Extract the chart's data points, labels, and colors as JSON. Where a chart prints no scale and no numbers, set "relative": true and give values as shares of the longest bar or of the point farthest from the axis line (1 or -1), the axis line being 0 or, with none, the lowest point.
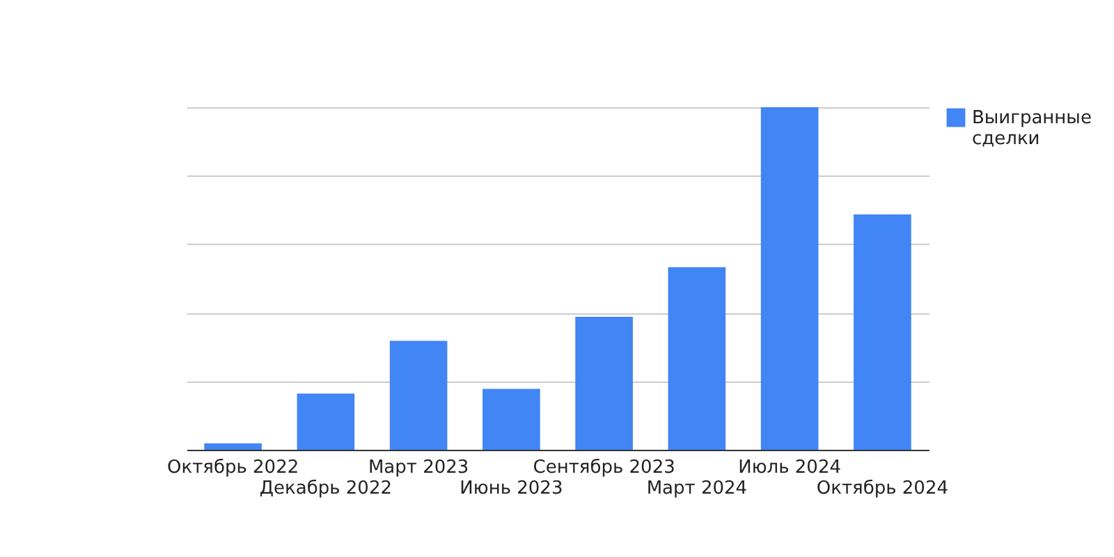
{
  "chart_data": {
    "type": "bar",
    "relative": true,
    "categories": [
      "Октябрь 2022",
      "Декабрь 2022",
      "Март 2023",
      "Июнь 2023",
      "Сентябрь 2023",
      "Март 2024",
      "Июль 2024",
      "Октябрь 2024"
    ],
    "series": [
      {
        "name": "Выигранные сделки",
        "color": "#4285f4",
        "values": [
          0.019,
          0.164,
          0.318,
          0.178,
          0.388,
          0.533,
          1.0,
          0.687
        ]
      }
    ],
    "grid": true,
    "legend": "top right"
  }
}
